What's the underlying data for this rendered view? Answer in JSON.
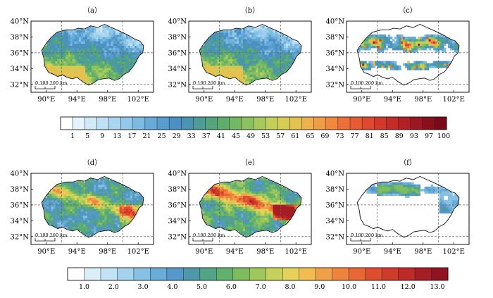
{
  "panels": [
    {
      "label": "（a）",
      "kind": "sparse-gradient",
      "cbar": 1,
      "seed": 11
    },
    {
      "label": "（b）",
      "kind": "sparse-gradient",
      "cbar": 1,
      "seed": 23
    },
    {
      "label": "（c）",
      "kind": "difference",
      "cbar": 1,
      "seed": 37
    },
    {
      "label": "（d）",
      "kind": "dense",
      "cbar": 2,
      "seed": 41
    },
    {
      "label": "（e）",
      "kind": "dense-strong",
      "cbar": 2,
      "seed": 53
    },
    {
      "label": "（f）",
      "kind": "difference-small",
      "cbar": 2,
      "seed": 67
    }
  ],
  "lat_ticks": [
    "32°N",
    "34°N",
    "36°N",
    "38°N",
    "40°N"
  ],
  "lon_ticks": [
    "90°E",
    "94°E",
    "98°E",
    "102°E"
  ],
  "scale_bar_label": "0 100 200 km",
  "colorbar1": {
    "labels": [
      "1",
      "5",
      "9",
      "13",
      "17",
      "21",
      "25",
      "29",
      "33",
      "37",
      "41",
      "45",
      "49",
      "53",
      "57",
      "61",
      "65",
      "69",
      "73",
      "77",
      "81",
      "85",
      "89",
      "93",
      "97",
      "100"
    ],
    "colors": [
      "#ffffff",
      "#e6f3fb",
      "#d2eaf7",
      "#bfe0f2",
      "#aad5ee",
      "#93c8e8",
      "#7cbbe2",
      "#67acd9",
      "#579dcf",
      "#4b8fc4",
      "#4a93b2",
      "#4d9c97",
      "#52a57e",
      "#5eae6b",
      "#73b863",
      "#8cc15f",
      "#a6c95c",
      "#c2cf58",
      "#d6cd53",
      "#e3c250",
      "#edb24b",
      "#f19d45",
      "#f2873e",
      "#ee7038",
      "#e85c33",
      "#e0482f",
      "#d4382c",
      "#c52b29",
      "#b21f25",
      "#9e1621",
      "#8a0f1d",
      "#7a0a1a"
    ]
  },
  "colorbar2": {
    "labels": [
      "1.0",
      "2.0",
      "3.0",
      "4.0",
      "5.0",
      "6.0",
      "7.0",
      "8.0",
      "9.0",
      "10.0",
      "11.0",
      "12.0",
      "13.0"
    ],
    "colors": [
      "#ffffff",
      "#dcefF9",
      "#c2e3f4",
      "#a4d3ed",
      "#86c1e4",
      "#69acd8",
      "#5598c9",
      "#4f98ac",
      "#53a487",
      "#61b06c",
      "#7cbd60",
      "#a0c75a",
      "#c6d159",
      "#e5d25a",
      "#f1bc52",
      "#f2a047",
      "#ee833c",
      "#e86733",
      "#e04d2e",
      "#d13a2b",
      "#bf2a28",
      "#a71d24",
      "#8f1420"
    ]
  }
}
